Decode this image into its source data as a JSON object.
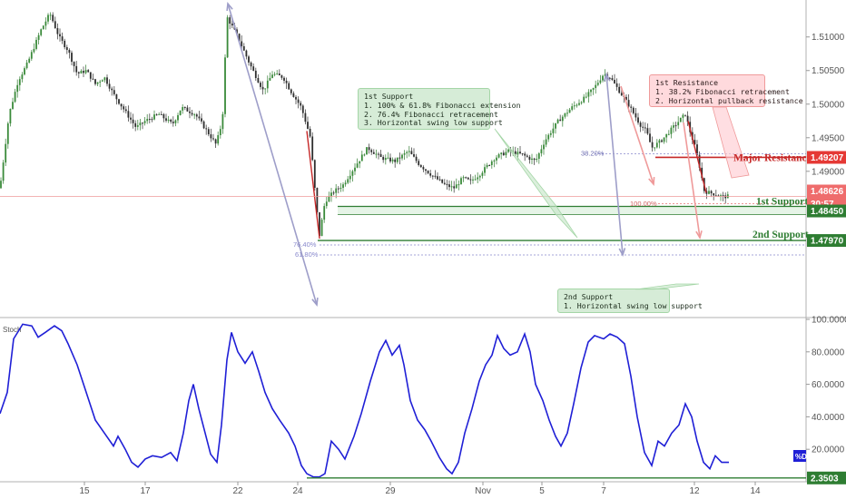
{
  "chart_data": [
    {
      "type": "candlestick",
      "ylim": [
        1.4685,
        1.5155
      ],
      "y_ticks": [
        "1.51000",
        "1.50500",
        "1.50000",
        "1.49500",
        "1.49000"
      ],
      "x_ticks": [
        "15",
        "17",
        "22",
        "24",
        "29",
        "Nov",
        "5",
        "7",
        "12",
        "14"
      ],
      "last_price": "1.48626",
      "countdown": "30:57",
      "close_path": [
        [
          0,
          1.4875
        ],
        [
          10,
          1.4985
        ],
        [
          20,
          1.5035
        ],
        [
          30,
          1.506
        ],
        [
          45,
          1.511
        ],
        [
          55,
          1.5135
        ],
        [
          65,
          1.51
        ],
        [
          75,
          1.508
        ],
        [
          85,
          1.5045
        ],
        [
          95,
          1.505
        ],
        [
          105,
          1.503
        ],
        [
          115,
          1.504
        ],
        [
          125,
          1.5015
        ],
        [
          140,
          1.4985
        ],
        [
          150,
          1.4965
        ],
        [
          160,
          1.4975
        ],
        [
          175,
          1.4985
        ],
        [
          190,
          1.497
        ],
        [
          200,
          1.4995
        ],
        [
          215,
          1.4985
        ],
        [
          228,
          1.496
        ],
        [
          238,
          1.494
        ],
        [
          245,
          1.4975
        ],
        [
          250,
          1.513
        ],
        [
          262,
          1.51
        ],
        [
          275,
          1.506
        ],
        [
          290,
          1.502
        ],
        [
          300,
          1.5045
        ],
        [
          312,
          1.504
        ],
        [
          320,
          1.502
        ],
        [
          332,
          1.4995
        ],
        [
          342,
          1.495
        ],
        [
          348,
          1.4855
        ],
        [
          352,
          1.4805
        ],
        [
          358,
          1.4855
        ],
        [
          368,
          1.487
        ],
        [
          378,
          1.488
        ],
        [
          390,
          1.4905
        ],
        [
          405,
          1.4935
        ],
        [
          420,
          1.492
        ],
        [
          435,
          1.4915
        ],
        [
          450,
          1.493
        ],
        [
          462,
          1.491
        ],
        [
          475,
          1.4895
        ],
        [
          490,
          1.488
        ],
        [
          500,
          1.4875
        ],
        [
          510,
          1.489
        ],
        [
          518,
          1.4885
        ],
        [
          528,
          1.4895
        ],
        [
          545,
          1.492
        ],
        [
          560,
          1.493
        ],
        [
          575,
          1.4925
        ],
        [
          590,
          1.4915
        ],
        [
          600,
          1.4945
        ],
        [
          615,
          1.4975
        ],
        [
          630,
          1.4995
        ],
        [
          645,
          1.501
        ],
        [
          655,
          1.5025
        ],
        [
          665,
          1.5045
        ],
        [
          672,
          1.504
        ],
        [
          682,
          1.502
        ],
        [
          692,
          1.5
        ],
        [
          705,
          1.497
        ],
        [
          712,
          1.496
        ],
        [
          718,
          1.4935
        ],
        [
          728,
          1.4945
        ],
        [
          738,
          1.496
        ],
        [
          748,
          1.4975
        ],
        [
          755,
          1.4985
        ],
        [
          760,
          1.496
        ],
        [
          766,
          1.4935
        ],
        [
          771,
          1.4905
        ],
        [
          776,
          1.487
        ],
        [
          782,
          1.4868
        ],
        [
          790,
          1.4865
        ],
        [
          797,
          1.4862
        ],
        [
          803,
          1.4863
        ]
      ],
      "levels": [
        {
          "label": "Major Resistance",
          "value": "1.49207"
        },
        {
          "label": "1st Support",
          "value": "1.48450"
        },
        {
          "label": "2nd Support",
          "value": "1.47970"
        }
      ],
      "fib_labels": {
        "retracement_382": "38.20%",
        "extension_100": "100.00%",
        "retracement_764": "76.40%",
        "retracement_618": "61.80%"
      },
      "colors": {
        "up": "#26a69a",
        "down": "#ef5350",
        "candle": "#3a7a3a",
        "support": "#2e7d32",
        "resistance": "#e53935",
        "arrow": "#9e9ec9"
      }
    },
    {
      "type": "line",
      "label": "Stoch",
      "ylim": [
        0,
        100
      ],
      "y_ticks": [
        "100.0000",
        "80.0000",
        "60.0000",
        "40.0000",
        "20.0000"
      ],
      "badge": "%D",
      "support_value": "2.3503",
      "line_color": "#1f1fd6",
      "series_path": [
        [
          0,
          42
        ],
        [
          8,
          55
        ],
        [
          15,
          88
        ],
        [
          25,
          97
        ],
        [
          35,
          96
        ],
        [
          42,
          89
        ],
        [
          50,
          92
        ],
        [
          60,
          96
        ],
        [
          68,
          93
        ],
        [
          75,
          85
        ],
        [
          85,
          72
        ],
        [
          95,
          55
        ],
        [
          105,
          38
        ],
        [
          115,
          30
        ],
        [
          125,
          22
        ],
        [
          130,
          28
        ],
        [
          138,
          20
        ],
        [
          145,
          12
        ],
        [
          152,
          9
        ],
        [
          160,
          14
        ],
        [
          168,
          16
        ],
        [
          178,
          15
        ],
        [
          188,
          18
        ],
        [
          195,
          13
        ],
        [
          202,
          30
        ],
        [
          208,
          50
        ],
        [
          213,
          60
        ],
        [
          219,
          45
        ],
        [
          226,
          30
        ],
        [
          232,
          17
        ],
        [
          239,
          12
        ],
        [
          244,
          35
        ],
        [
          250,
          75
        ],
        [
          255,
          92
        ],
        [
          262,
          80
        ],
        [
          270,
          73
        ],
        [
          278,
          80
        ],
        [
          285,
          68
        ],
        [
          292,
          55
        ],
        [
          300,
          45
        ],
        [
          308,
          38
        ],
        [
          318,
          30
        ],
        [
          325,
          22
        ],
        [
          332,
          10
        ],
        [
          338,
          5
        ],
        [
          345,
          3
        ],
        [
          352,
          3
        ],
        [
          358,
          5
        ],
        [
          365,
          25
        ],
        [
          373,
          20
        ],
        [
          380,
          14
        ],
        [
          390,
          28
        ],
        [
          398,
          42
        ],
        [
          408,
          62
        ],
        [
          418,
          80
        ],
        [
          425,
          87
        ],
        [
          432,
          78
        ],
        [
          440,
          84
        ],
        [
          445,
          72
        ],
        [
          452,
          50
        ],
        [
          460,
          38
        ],
        [
          468,
          32
        ],
        [
          475,
          25
        ],
        [
          484,
          15
        ],
        [
          492,
          8
        ],
        [
          498,
          5
        ],
        [
          505,
          12
        ],
        [
          512,
          30
        ],
        [
          520,
          45
        ],
        [
          528,
          62
        ],
        [
          535,
          72
        ],
        [
          542,
          78
        ],
        [
          548,
          90
        ],
        [
          555,
          82
        ],
        [
          562,
          78
        ],
        [
          570,
          80
        ],
        [
          578,
          91
        ],
        [
          584,
          80
        ],
        [
          590,
          60
        ],
        [
          598,
          50
        ],
        [
          605,
          38
        ],
        [
          612,
          28
        ],
        [
          618,
          22
        ],
        [
          625,
          30
        ],
        [
          632,
          48
        ],
        [
          640,
          70
        ],
        [
          648,
          86
        ],
        [
          655,
          90
        ],
        [
          665,
          88
        ],
        [
          672,
          91
        ],
        [
          680,
          89
        ],
        [
          688,
          85
        ],
        [
          695,
          65
        ],
        [
          702,
          40
        ],
        [
          710,
          18
        ],
        [
          718,
          10
        ],
        [
          725,
          25
        ],
        [
          732,
          22
        ],
        [
          740,
          30
        ],
        [
          748,
          35
        ],
        [
          755,
          48
        ],
        [
          762,
          40
        ],
        [
          768,
          25
        ],
        [
          775,
          12
        ],
        [
          782,
          8
        ],
        [
          788,
          16
        ],
        [
          795,
          12
        ],
        [
          803,
          12
        ]
      ]
    }
  ],
  "notes": {
    "support1": {
      "title": "1st Support",
      "lines": [
        "1. 100% & 61.8% Fibonacci extension",
        "2. 76.4% Fibonacci retracement",
        "3. Horizontal swing low support"
      ]
    },
    "resistance1": {
      "title": "1st Resistance",
      "lines": [
        "1. 38.2% Fibonacci retracement",
        "2. Horizontal pullback resistance"
      ]
    },
    "support2": {
      "title": "2nd Support",
      "lines": [
        "1. Horizontal swing low support"
      ]
    }
  }
}
